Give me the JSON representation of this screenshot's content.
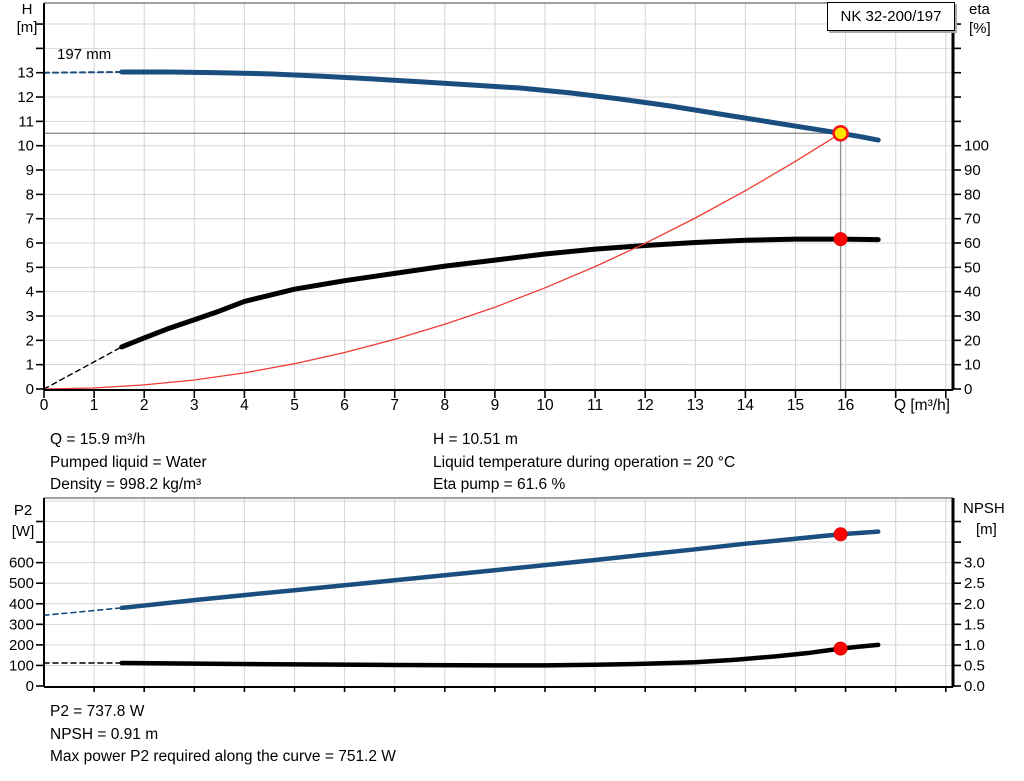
{
  "pump": {
    "model": "NK 32-200/197",
    "impeller_label": "197 mm"
  },
  "info_top_left": [
    "Q = 15.9 m³/h",
    "Pumped liquid = Water",
    "Density = 998.2 kg/m³"
  ],
  "info_top_right": [
    "H = 10.51 m",
    "Liquid temperature during operation = 20 °C",
    "Eta pump = 61.6 %"
  ],
  "info_bottom": [
    "P2 = 737.8 W",
    "NPSH = 0.91 m",
    "Max power P2 required along the curve = 751.2 W"
  ],
  "colors": {
    "curve_blue": "#1A4E7F",
    "curve_black": "#000000",
    "system_red": "#F03C32",
    "marker_yellow": "#FFE400",
    "marker_ring_red": "#F21818",
    "marker_red": "#FF0000",
    "crosshair_gray": "#8F8F8F",
    "grid_gray": "#D4D4D4"
  },
  "chart_data": [
    {
      "id": "hq-chart",
      "type": "line",
      "title": "",
      "x_axis": {
        "unit_label": "Q [m³/h]",
        "min": 0,
        "max": 18.14,
        "labeled_ticks": [
          {
            "v": 0,
            "t": "0"
          },
          {
            "v": 1,
            "t": "1"
          },
          {
            "v": 2,
            "t": "2"
          },
          {
            "v": 3,
            "t": "3"
          },
          {
            "v": 4,
            "t": "4"
          },
          {
            "v": 5,
            "t": "5"
          },
          {
            "v": 6,
            "t": "6"
          },
          {
            "v": 7,
            "t": "7"
          },
          {
            "v": 8,
            "t": "8"
          },
          {
            "v": 9,
            "t": "9"
          },
          {
            "v": 10,
            "t": "10"
          },
          {
            "v": 11,
            "t": "11"
          },
          {
            "v": 12,
            "t": "12"
          },
          {
            "v": 13,
            "t": "13"
          },
          {
            "v": 14,
            "t": "14"
          },
          {
            "v": 15,
            "t": "15"
          },
          {
            "v": 16,
            "t": "16"
          }
        ],
        "unlabeled_ticks": [
          17,
          18
        ],
        "grid": {
          "from": 1,
          "to": 18,
          "step": 1
        }
      },
      "left_axis": {
        "title": [
          "H",
          "[m]"
        ],
        "min": 0,
        "max": 15.87,
        "labeled_ticks": [
          {
            "v": 0,
            "t": "0"
          },
          {
            "v": 1,
            "t": "1"
          },
          {
            "v": 2,
            "t": "2"
          },
          {
            "v": 3,
            "t": "3"
          },
          {
            "v": 4,
            "t": "4"
          },
          {
            "v": 5,
            "t": "5"
          },
          {
            "v": 6,
            "t": "6"
          },
          {
            "v": 7,
            "t": "7"
          },
          {
            "v": 8,
            "t": "8"
          },
          {
            "v": 9,
            "t": "9"
          },
          {
            "v": 10,
            "t": "10"
          },
          {
            "v": 11,
            "t": "11"
          },
          {
            "v": 12,
            "t": "12"
          },
          {
            "v": 13,
            "t": "13"
          }
        ],
        "unlabeled_ticks": [
          14,
          15
        ],
        "grid": {
          "from": 1,
          "to": 15,
          "step": 1
        }
      },
      "right_axis": {
        "title": [
          "eta",
          "[%]"
        ],
        "min": 0,
        "max": 158.7,
        "labeled_ticks": [
          {
            "v": 0,
            "t": "0"
          },
          {
            "v": 10,
            "t": "10"
          },
          {
            "v": 20,
            "t": "20"
          },
          {
            "v": 30,
            "t": "30"
          },
          {
            "v": 40,
            "t": "40"
          },
          {
            "v": 50,
            "t": "50"
          },
          {
            "v": 60,
            "t": "60"
          },
          {
            "v": 70,
            "t": "70"
          },
          {
            "v": 80,
            "t": "80"
          },
          {
            "v": 90,
            "t": "90"
          },
          {
            "v": 100,
            "t": "100"
          }
        ],
        "unlabeled_ticks": [
          110,
          120,
          130,
          140,
          150
        ]
      },
      "series": [
        {
          "name": "head-curve-dashed",
          "axis": "left",
          "color": "#1A4E7F",
          "width": 2,
          "dashed": true,
          "points": [
            [
              0,
              13.0
            ],
            [
              1.55,
              13.03
            ]
          ]
        },
        {
          "name": "efficiency-curve-dashed",
          "axis": "right",
          "color": "#000000",
          "width": 1.4,
          "dashed": true,
          "points": [
            [
              0,
              0
            ],
            [
              1.55,
              17.3
            ]
          ]
        },
        {
          "name": "head-curve",
          "axis": "left",
          "color": "#1A4E7F",
          "width": 5,
          "dashed": false,
          "points": [
            [
              1.55,
              13.03
            ],
            [
              2.5,
              13.03
            ],
            [
              3.5,
              13.0
            ],
            [
              4.5,
              12.95
            ],
            [
              5.5,
              12.86
            ],
            [
              6.5,
              12.75
            ],
            [
              7.5,
              12.63
            ],
            [
              8.5,
              12.5
            ],
            [
              9.5,
              12.37
            ],
            [
              10.5,
              12.17
            ],
            [
              11.5,
              11.92
            ],
            [
              12.5,
              11.63
            ],
            [
              13.5,
              11.3
            ],
            [
              14.5,
              10.97
            ],
            [
              15.2,
              10.74
            ],
            [
              15.9,
              10.51
            ],
            [
              16.3,
              10.37
            ],
            [
              16.65,
              10.23
            ]
          ]
        },
        {
          "name": "efficiency-curve",
          "axis": "right",
          "color": "#000000",
          "width": 5,
          "dashed": false,
          "points": [
            [
              1.55,
              17.3
            ],
            [
              2,
              21
            ],
            [
              2.5,
              25
            ],
            [
              3,
              28.5
            ],
            [
              3.5,
              32
            ],
            [
              4,
              36
            ],
            [
              4.5,
              38.5
            ],
            [
              5,
              41
            ],
            [
              6,
              44.5
            ],
            [
              7,
              47.5
            ],
            [
              8,
              50.5
            ],
            [
              9,
              53
            ],
            [
              10,
              55.5
            ],
            [
              11,
              57.5
            ],
            [
              12,
              59
            ],
            [
              13,
              60.2
            ],
            [
              14,
              61.1
            ],
            [
              15,
              61.6
            ],
            [
              15.9,
              61.6
            ],
            [
              16.65,
              61.4
            ]
          ]
        },
        {
          "name": "system-curve",
          "axis": "left",
          "color": "#F03C32",
          "width": 1.3,
          "dashed": false,
          "points": [
            [
              0,
              0
            ],
            [
              1,
              0.04
            ],
            [
              2,
              0.17
            ],
            [
              3,
              0.37
            ],
            [
              4,
              0.66
            ],
            [
              5,
              1.04
            ],
            [
              6,
              1.5
            ],
            [
              7,
              2.04
            ],
            [
              8,
              2.66
            ],
            [
              9,
              3.36
            ],
            [
              10,
              4.16
            ],
            [
              11,
              5.03
            ],
            [
              12,
              5.99
            ],
            [
              13,
              7.03
            ],
            [
              14,
              8.15
            ],
            [
              15,
              9.36
            ],
            [
              15.9,
              10.51
            ]
          ]
        }
      ],
      "crosshair": {
        "q": 15.9,
        "value": 10.51,
        "axis": "left",
        "color": "#8F8F8F"
      },
      "markers": [
        {
          "name": "duty-point-head",
          "axis": "left",
          "q": 15.9,
          "value": 10.51,
          "r": 7,
          "fill": "#FFE400",
          "stroke": "#F21818",
          "stroke_width": 2.6
        },
        {
          "name": "duty-point-eta",
          "axis": "right",
          "q": 15.9,
          "value": 61.6,
          "r": 6.5,
          "fill": "#FF0000",
          "stroke": "#E00000",
          "stroke_width": 1
        }
      ]
    },
    {
      "id": "p2-npsh-chart",
      "type": "line",
      "title": "",
      "x_axis": {
        "unit_label": "",
        "min": 0,
        "max": 18.14,
        "labeled_ticks": [],
        "unlabeled_ticks": [
          1,
          2,
          3,
          4,
          5,
          6,
          7,
          8,
          9,
          10,
          11,
          12,
          13,
          14,
          15,
          16,
          17,
          18
        ],
        "grid": {
          "from": 1,
          "to": 18,
          "step": 1
        }
      },
      "left_axis": {
        "title": [
          "P2",
          "[W]"
        ],
        "min": 0,
        "max": 914,
        "labeled_ticks": [
          {
            "v": 0,
            "t": "0"
          },
          {
            "v": 100,
            "t": "100"
          },
          {
            "v": 200,
            "t": "200"
          },
          {
            "v": 300,
            "t": "300"
          },
          {
            "v": 400,
            "t": "400"
          },
          {
            "v": 500,
            "t": "500"
          },
          {
            "v": 600,
            "t": "600"
          }
        ],
        "unlabeled_ticks": [
          700,
          800
        ],
        "grid": {
          "from": 100,
          "to": 900,
          "step": 100
        }
      },
      "right_axis": {
        "title": [
          "NPSH",
          "[m]"
        ],
        "min": 0,
        "max": 4.57,
        "labeled_ticks": [
          {
            "v": 0,
            "t": "0.0"
          },
          {
            "v": 0.5,
            "t": "0.5"
          },
          {
            "v": 1,
            "t": "1.0"
          },
          {
            "v": 1.5,
            "t": "1.5"
          },
          {
            "v": 2,
            "t": "2.0"
          },
          {
            "v": 2.5,
            "t": "2.5"
          },
          {
            "v": 3,
            "t": "3.0"
          }
        ],
        "unlabeled_ticks": [
          3.5,
          4
        ]
      },
      "series": [
        {
          "name": "p2-curve-dashed",
          "axis": "left",
          "color": "#1A4E7F",
          "width": 1.6,
          "dashed": true,
          "points": [
            [
              0,
              344
            ],
            [
              1.55,
              380
            ]
          ]
        },
        {
          "name": "npsh-curve-dashed",
          "axis": "right",
          "color": "#000000",
          "width": 1.6,
          "dashed": true,
          "points": [
            [
              0,
              0.56
            ],
            [
              1.55,
              0.56
            ]
          ]
        },
        {
          "name": "p2-curve",
          "axis": "left",
          "color": "#1A4E7F",
          "width": 4.5,
          "dashed": false,
          "points": [
            [
              1.55,
              380
            ],
            [
              3,
              418
            ],
            [
              4,
              442
            ],
            [
              5,
              466
            ],
            [
              6,
              490
            ],
            [
              7,
              514
            ],
            [
              8,
              539
            ],
            [
              9,
              563
            ],
            [
              10,
              588
            ],
            [
              11,
              613
            ],
            [
              12,
              639
            ],
            [
              13,
              665
            ],
            [
              14,
              692
            ],
            [
              15,
              716
            ],
            [
              15.9,
              737.8
            ],
            [
              16.65,
              751.2
            ]
          ]
        },
        {
          "name": "npsh-curve",
          "axis": "right",
          "color": "#000000",
          "width": 4.5,
          "dashed": false,
          "points": [
            [
              1.55,
              0.56
            ],
            [
              3,
              0.545
            ],
            [
              5,
              0.525
            ],
            [
              7,
              0.51
            ],
            [
              9,
              0.5
            ],
            [
              10,
              0.5
            ],
            [
              11,
              0.515
            ],
            [
              12,
              0.54
            ],
            [
              13,
              0.58
            ],
            [
              13.8,
              0.64
            ],
            [
              14.6,
              0.72
            ],
            [
              15.3,
              0.81
            ],
            [
              15.9,
              0.91
            ],
            [
              16.3,
              0.96
            ],
            [
              16.65,
              1.0
            ]
          ]
        }
      ],
      "markers": [
        {
          "name": "duty-point-p2",
          "axis": "left",
          "q": 15.9,
          "value": 737.8,
          "r": 6.5,
          "fill": "#FF0000",
          "stroke": "#E00000",
          "stroke_width": 1
        },
        {
          "name": "duty-point-npsh",
          "axis": "right",
          "q": 15.9,
          "value": 0.91,
          "r": 6.5,
          "fill": "#FF0000",
          "stroke": "#E00000",
          "stroke_width": 1
        }
      ]
    }
  ]
}
